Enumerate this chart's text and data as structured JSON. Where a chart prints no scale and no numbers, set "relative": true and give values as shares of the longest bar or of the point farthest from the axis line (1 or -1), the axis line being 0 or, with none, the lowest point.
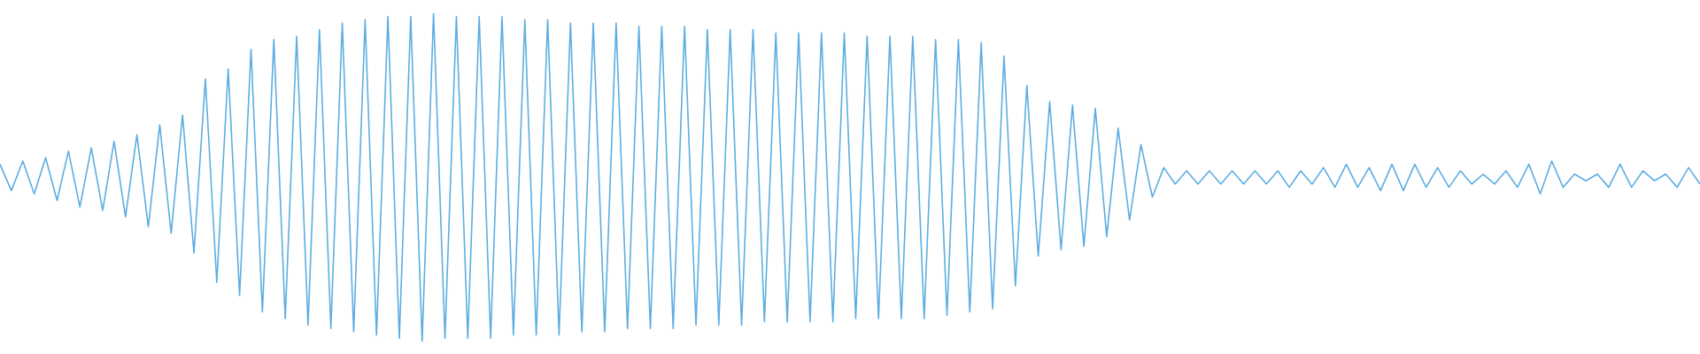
{
  "chart_data": {
    "type": "line",
    "relative": true,
    "legend": false,
    "marker": "none",
    "categories": [
      null,
      null,
      null,
      null,
      null,
      null,
      null,
      null,
      null,
      null,
      null,
      null,
      null,
      null,
      null,
      null,
      null,
      null,
      null,
      null,
      null,
      null,
      null,
      null,
      null,
      null,
      null,
      null,
      null,
      null,
      null,
      null,
      null,
      null,
      null,
      null,
      null,
      null,
      null,
      null,
      null,
      null,
      null,
      null,
      null,
      null,
      null,
      null,
      null,
      null,
      null,
      null,
      null,
      null,
      null,
      null,
      null,
      null,
      null,
      null,
      null,
      null,
      null,
      null,
      null,
      null,
      null,
      null,
      null,
      null,
      null,
      null,
      null,
      null,
      null,
      null,
      null,
      null,
      null,
      null,
      null,
      null,
      null,
      null,
      null,
      null,
      null,
      null,
      null,
      null,
      null,
      null,
      null,
      null,
      null,
      null,
      null,
      null,
      null,
      null,
      null,
      null,
      null,
      null,
      null,
      null,
      null,
      null,
      null,
      null,
      null,
      null,
      null,
      null,
      null,
      null,
      null,
      null,
      null,
      null,
      null,
      null,
      null,
      null,
      null,
      null,
      null,
      null,
      null,
      null,
      null,
      null,
      null,
      null,
      null,
      null,
      null,
      null,
      null,
      null,
      null,
      null,
      null,
      null,
      null,
      null,
      null,
      null,
      null,
      null
    ],
    "series": [
      {
        "color": "#5dade2",
        "values": [
          0.54,
          0.46,
          0.55,
          0.45,
          0.56,
          0.43,
          0.58,
          0.41,
          0.59,
          0.4,
          0.61,
          0.38,
          0.63,
          0.35,
          0.66,
          0.33,
          0.69,
          0.27,
          0.8,
          0.18,
          0.83,
          0.14,
          0.89,
          0.09,
          0.92,
          0.07,
          0.93,
          0.05,
          0.95,
          0.04,
          0.97,
          0.03,
          0.98,
          0.02,
          0.99,
          0.01,
          0.99,
          0,
          1,
          0.01,
          0.99,
          0.01,
          0.99,
          0.01,
          0.99,
          0.02,
          0.98,
          0.02,
          0.98,
          0.02,
          0.97,
          0.03,
          0.97,
          0.03,
          0.97,
          0.04,
          0.96,
          0.04,
          0.96,
          0.04,
          0.96,
          0.05,
          0.95,
          0.05,
          0.95,
          0.05,
          0.95,
          0.06,
          0.94,
          0.06,
          0.94,
          0.06,
          0.94,
          0.06,
          0.94,
          0.07,
          0.93,
          0.07,
          0.93,
          0.07,
          0.93,
          0.07,
          0.92,
          0.08,
          0.92,
          0.09,
          0.91,
          0.1,
          0.87,
          0.17,
          0.78,
          0.26,
          0.73,
          0.28,
          0.72,
          0.29,
          0.71,
          0.32,
          0.65,
          0.37,
          0.6,
          0.44,
          0.53,
          0.48,
          0.52,
          0.48,
          0.52,
          0.48,
          0.52,
          0.48,
          0.52,
          0.48,
          0.52,
          0.47,
          0.52,
          0.48,
          0.53,
          0.47,
          0.54,
          0.47,
          0.53,
          0.46,
          0.54,
          0.46,
          0.54,
          0.47,
          0.53,
          0.47,
          0.52,
          0.48,
          0.51,
          0.48,
          0.52,
          0.47,
          0.54,
          0.45,
          0.55,
          0.47,
          0.51,
          0.49,
          0.51,
          0.47,
          0.54,
          0.47,
          0.52,
          0.49,
          0.51,
          0.47,
          0.53,
          0.48
        ]
      }
    ]
  }
}
